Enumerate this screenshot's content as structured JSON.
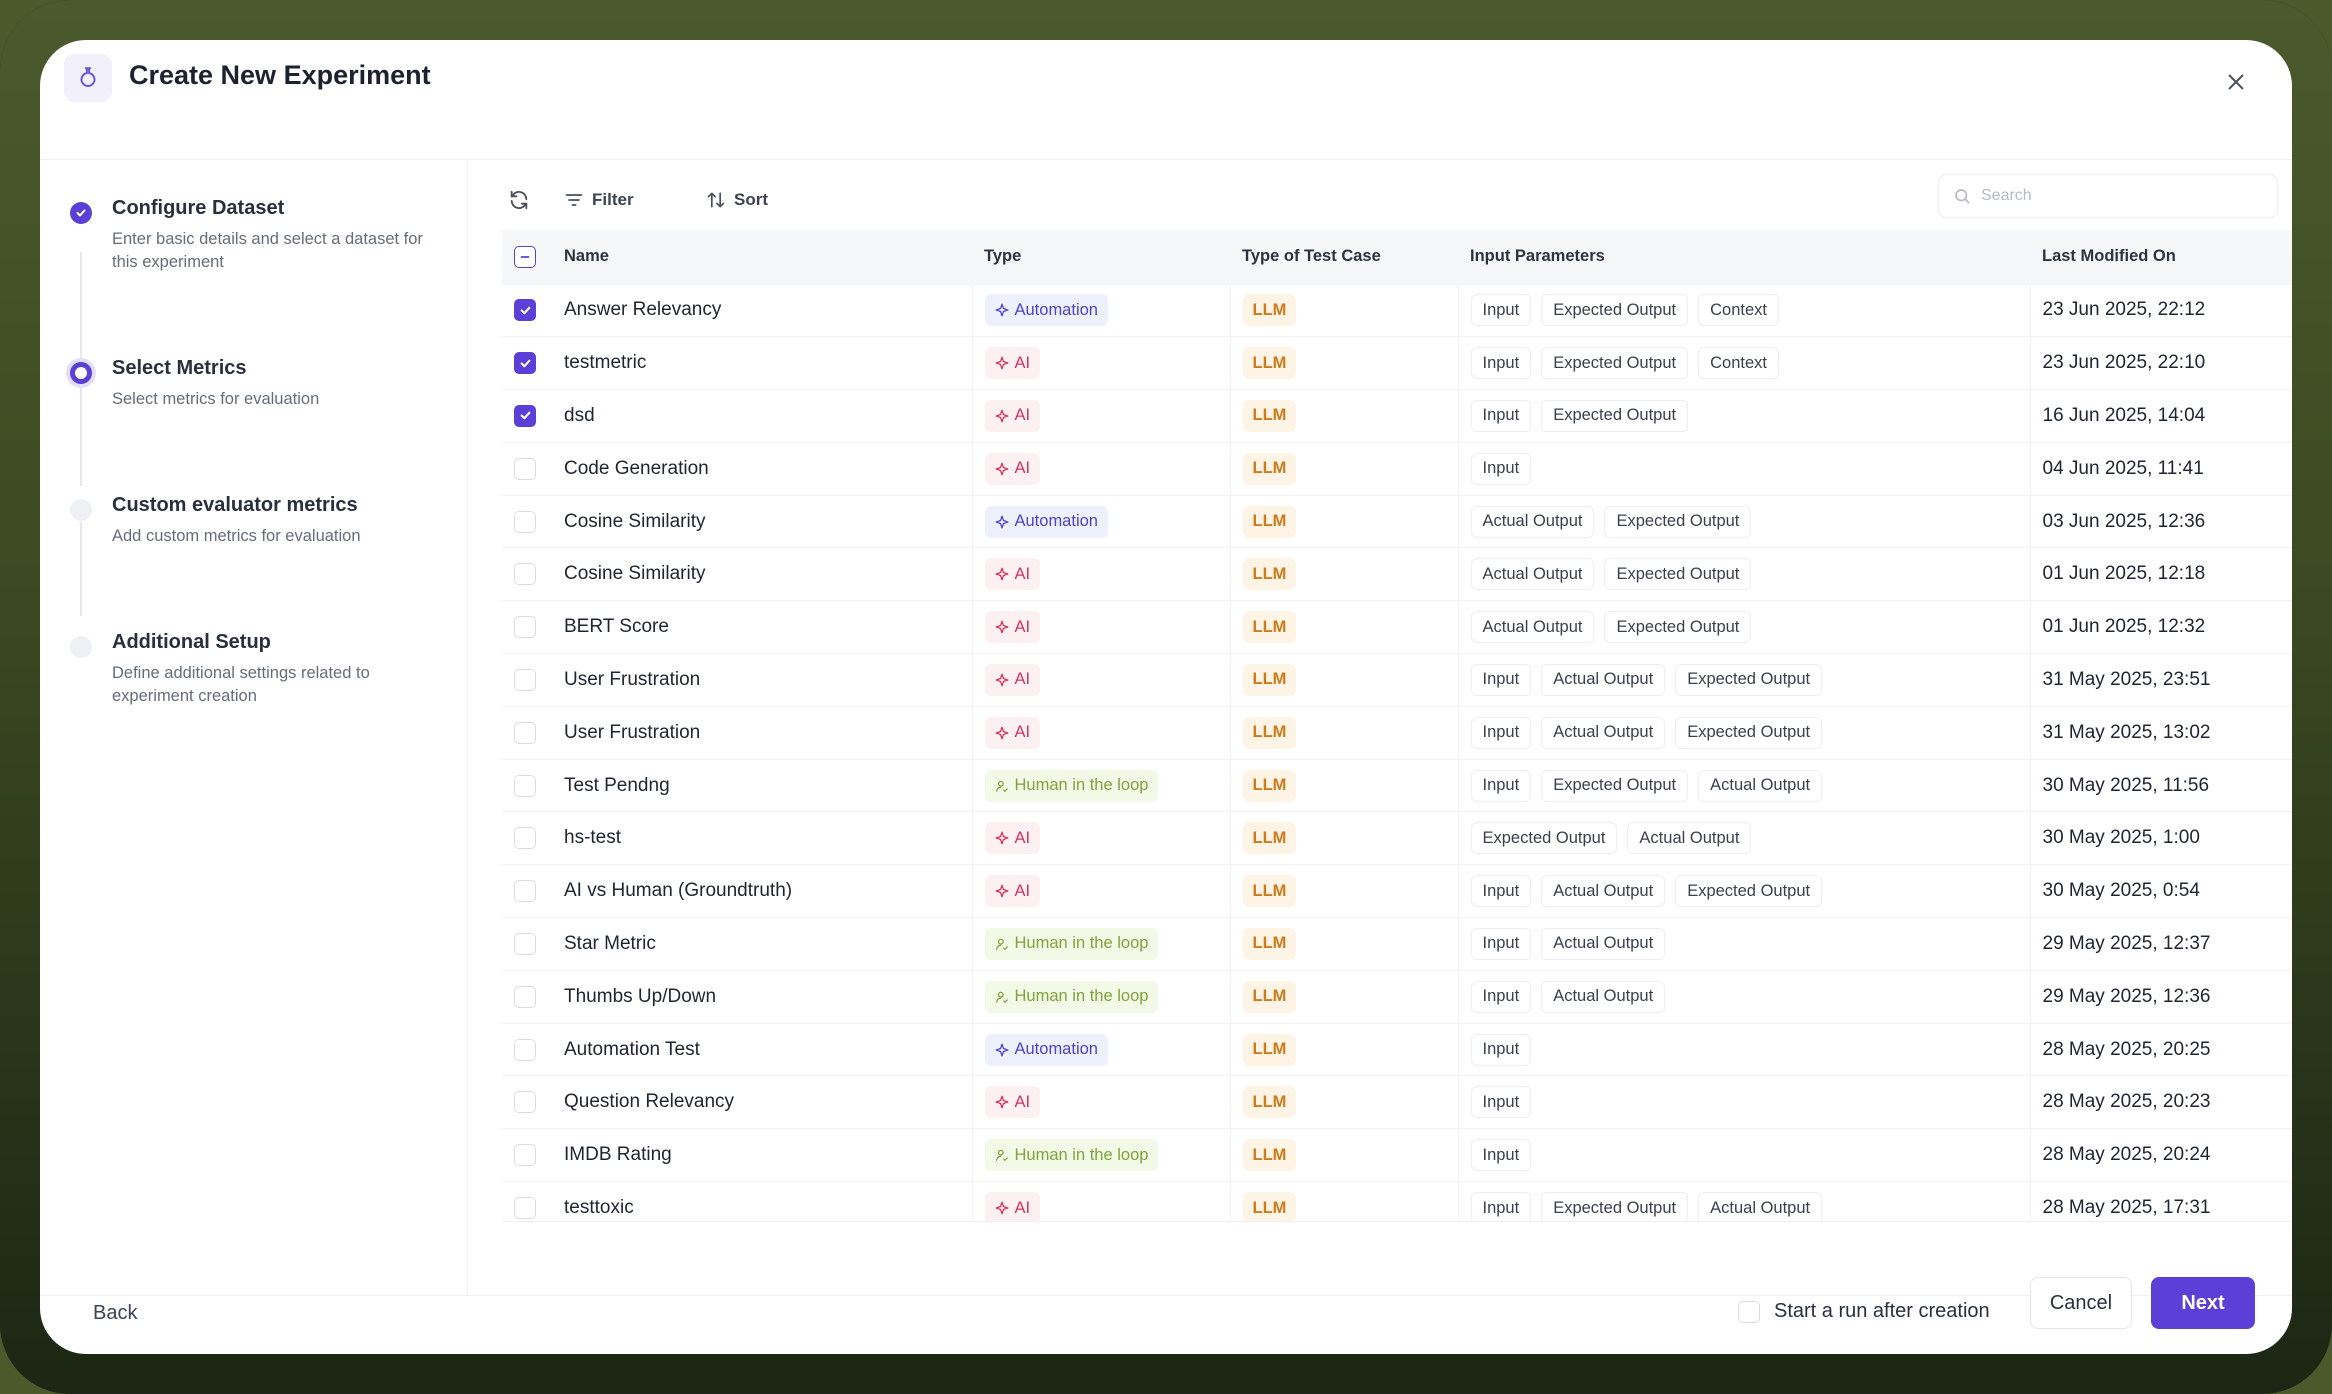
{
  "modal": {
    "title": "Create New Experiment"
  },
  "steps": [
    {
      "title": "Configure Dataset",
      "desc": "Enter basic details and select a dataset for this experiment",
      "state": "done"
    },
    {
      "title": "Select Metrics",
      "desc": "Select metrics for evaluation",
      "state": "current"
    },
    {
      "title": "Custom evaluator metrics",
      "desc": "Add custom metrics for evaluation",
      "state": "todo"
    },
    {
      "title": "Additional Setup",
      "desc": "Define additional settings related to experiment creation",
      "state": "todo"
    }
  ],
  "toolbar": {
    "filter_label": "Filter",
    "sort_label": "Sort",
    "search_placeholder": "Search"
  },
  "table": {
    "headers": {
      "name": "Name",
      "type": "Type",
      "test_case": "Type of Test Case",
      "params": "Input Parameters",
      "modified": "Last Modified On"
    },
    "rows": [
      {
        "checked": true,
        "name": "Answer Relevancy",
        "type": "Automation",
        "type_kind": "automation",
        "test_case": "LLM",
        "params": [
          "Input",
          "Expected Output",
          "Context"
        ],
        "modified": "23 Jun 2025, 22:12"
      },
      {
        "checked": true,
        "name": "testmetric",
        "type": "AI",
        "type_kind": "ai",
        "test_case": "LLM",
        "params": [
          "Input",
          "Expected Output",
          "Context"
        ],
        "modified": "23 Jun 2025, 22:10"
      },
      {
        "checked": true,
        "name": "dsd",
        "type": "AI",
        "type_kind": "ai",
        "test_case": "LLM",
        "params": [
          "Input",
          "Expected Output"
        ],
        "modified": "16 Jun 2025, 14:04"
      },
      {
        "checked": false,
        "name": "Code Generation",
        "type": "AI",
        "type_kind": "ai",
        "test_case": "LLM",
        "params": [
          "Input"
        ],
        "modified": "04 Jun 2025, 11:41"
      },
      {
        "checked": false,
        "name": "Cosine Similarity",
        "type": "Automation",
        "type_kind": "automation",
        "test_case": "LLM",
        "params": [
          "Actual Output",
          "Expected Output"
        ],
        "modified": "03 Jun 2025, 12:36"
      },
      {
        "checked": false,
        "name": "Cosine Similarity",
        "type": "AI",
        "type_kind": "ai",
        "test_case": "LLM",
        "params": [
          "Actual Output",
          "Expected Output"
        ],
        "modified": "01 Jun 2025, 12:18"
      },
      {
        "checked": false,
        "name": "BERT Score",
        "type": "AI",
        "type_kind": "ai",
        "test_case": "LLM",
        "params": [
          "Actual Output",
          "Expected Output"
        ],
        "modified": "01 Jun 2025, 12:32"
      },
      {
        "checked": false,
        "name": "User Frustration",
        "type": "AI",
        "type_kind": "ai",
        "test_case": "LLM",
        "params": [
          "Input",
          "Actual Output",
          "Expected Output"
        ],
        "modified": "31 May 2025, 23:51"
      },
      {
        "checked": false,
        "name": "User Frustration",
        "type": "AI",
        "type_kind": "ai",
        "test_case": "LLM",
        "params": [
          "Input",
          "Actual Output",
          "Expected Output"
        ],
        "modified": "31 May 2025, 13:02"
      },
      {
        "checked": false,
        "name": "Test Pendng",
        "type": "Human in the loop",
        "type_kind": "hitl",
        "test_case": "LLM",
        "params": [
          "Input",
          "Expected Output",
          "Actual Output"
        ],
        "modified": "30 May 2025, 11:56"
      },
      {
        "checked": false,
        "name": "hs-test",
        "type": "AI",
        "type_kind": "ai",
        "test_case": "LLM",
        "params": [
          "Expected Output",
          "Actual Output"
        ],
        "modified": "30 May 2025, 1:00"
      },
      {
        "checked": false,
        "name": "AI vs Human (Groundtruth)",
        "type": "AI",
        "type_kind": "ai",
        "test_case": "LLM",
        "params": [
          "Input",
          "Actual Output",
          "Expected Output"
        ],
        "modified": "30 May 2025, 0:54"
      },
      {
        "checked": false,
        "name": "Star Metric",
        "type": "Human in the loop",
        "type_kind": "hitl",
        "test_case": "LLM",
        "params": [
          "Input",
          "Actual Output"
        ],
        "modified": "29 May 2025, 12:37"
      },
      {
        "checked": false,
        "name": "Thumbs Up/Down",
        "type": "Human in the loop",
        "type_kind": "hitl",
        "test_case": "LLM",
        "params": [
          "Input",
          "Actual Output"
        ],
        "modified": "29 May 2025, 12:36"
      },
      {
        "checked": false,
        "name": "Automation Test",
        "type": "Automation",
        "type_kind": "automation",
        "test_case": "LLM",
        "params": [
          "Input"
        ],
        "modified": "28 May 2025, 20:25"
      },
      {
        "checked": false,
        "name": "Question Relevancy",
        "type": "AI",
        "type_kind": "ai",
        "test_case": "LLM",
        "params": [
          "Input"
        ],
        "modified": "28 May 2025, 20:23"
      },
      {
        "checked": false,
        "name": "IMDB Rating",
        "type": "Human in the loop",
        "type_kind": "hitl",
        "test_case": "LLM",
        "params": [
          "Input"
        ],
        "modified": "28 May 2025, 20:24"
      },
      {
        "checked": false,
        "name": "testtoxic",
        "type": "AI",
        "type_kind": "ai",
        "test_case": "LLM",
        "params": [
          "Input",
          "Expected Output",
          "Actual Output"
        ],
        "modified": "28 May 2025, 17:31"
      }
    ]
  },
  "footer": {
    "back_label": "Back",
    "run_label": "Start a run after creation",
    "run_checked": false,
    "cancel_label": "Cancel",
    "next_label": "Next"
  },
  "colors": {
    "accent": "#5b3fd6"
  }
}
